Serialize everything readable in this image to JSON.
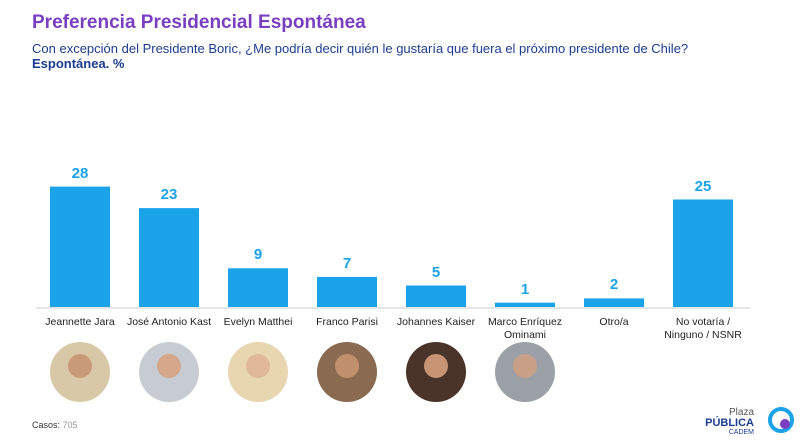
{
  "chart_data": {
    "type": "bar",
    "title": "Preferencia Presidencial Espontánea",
    "subtitle": "Con excepción del Presidente Boric, ¿Me podría decir quién le gustaría que fuera el próximo presidente de Chile?",
    "measure": "Espontánea. %",
    "categories": [
      "Jeannette Jara",
      "José Antonio Kast",
      "Evelyn Matthei",
      "Franco Parisi",
      "Johannes Kaiser",
      "Marco Enríquez Ominami",
      "Otro/a",
      "No votaría / Ninguno / NSNR"
    ],
    "values": [
      28,
      23,
      9,
      7,
      5,
      1,
      2,
      25
    ],
    "color": "#1aa3e8"
  },
  "footer": {
    "cases_label": "Casos:",
    "cases": 705
  },
  "logo": {
    "line1": "Plaza",
    "line2": "PÚBLICA",
    "line3": "CADEM"
  }
}
